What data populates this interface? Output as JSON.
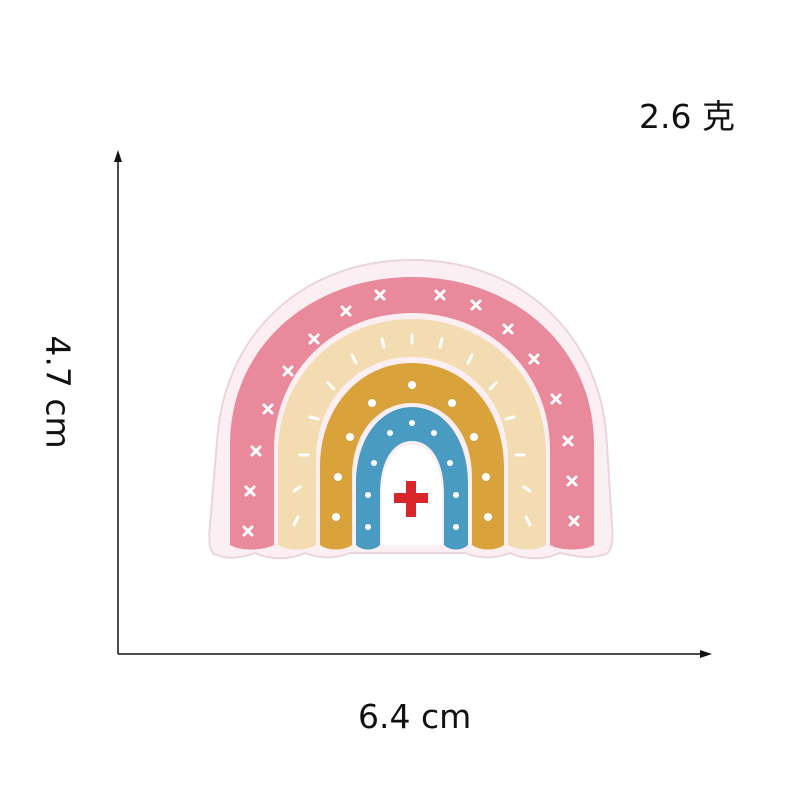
{
  "labels": {
    "weight": "2.6 克",
    "height": "4.7 cm",
    "width": "6.4 cm"
  },
  "patch": {
    "description_colors": {
      "outer_band": "#e88a9b",
      "second_band": "#f3dcb2",
      "third_band": "#d9a23a",
      "inner_band": "#4a9bc2",
      "center": "#ffffff",
      "cross": "#d8262b",
      "border": "#fbeff3"
    }
  }
}
